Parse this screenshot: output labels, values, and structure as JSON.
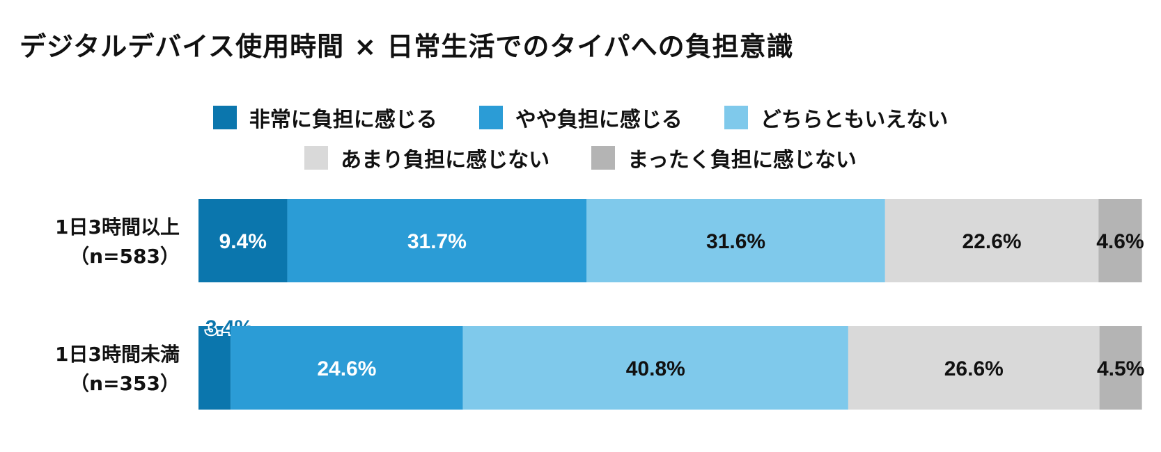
{
  "chart_data": {
    "type": "bar",
    "orientation": "horizontal",
    "stacked": "percent",
    "title": "デジタルデバイス使用時間 × 日常生活でのタイパへの負担意識",
    "legend_position": "top",
    "categories": [
      {
        "label": "1日3時間以上",
        "n": "（n=583）"
      },
      {
        "label": "1日3時間未満",
        "n": "（n=353）"
      }
    ],
    "series": [
      {
        "name": "非常に負担に感じる",
        "color": "#0b76ad",
        "label_color": "#ffffff",
        "values": [
          9.4,
          3.4
        ]
      },
      {
        "name": "やや負担に感じる",
        "color": "#2b9cd6",
        "label_color": "#ffffff",
        "values": [
          31.7,
          24.6
        ]
      },
      {
        "name": "どちらともいえない",
        "color": "#7fc9eb",
        "label_color": "#111111",
        "values": [
          31.6,
          40.8
        ]
      },
      {
        "name": "あまり負担に感じない",
        "color": "#d9d9d9",
        "label_color": "#111111",
        "values": [
          22.6,
          26.6
        ]
      },
      {
        "name": "まったく負担に感じない",
        "color": "#b4b4b4",
        "label_color": "#111111",
        "values": [
          4.6,
          4.5
        ]
      }
    ],
    "value_labels": [
      [
        "9.4%",
        "31.7%",
        "31.6%",
        "22.6%",
        "4.6%"
      ],
      [
        "3.4%",
        "24.6%",
        "40.8%",
        "26.6%",
        "4.5%"
      ]
    ],
    "xlim": [
      0,
      100
    ],
    "grid": false
  }
}
